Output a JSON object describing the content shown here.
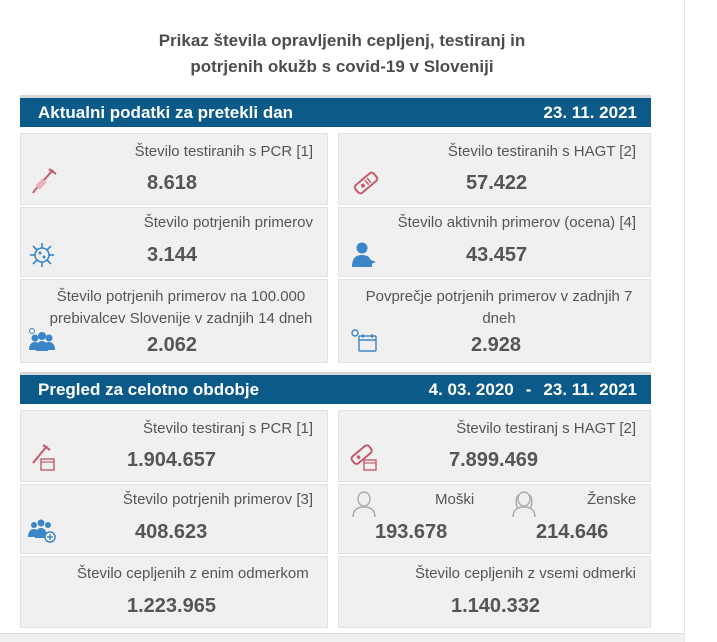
{
  "title": {
    "line1": "Prikaz števila opravljenih cepljenj, testiranj in",
    "line2": "potrjenih okužb s covid-19 v Sloveniji"
  },
  "daily": {
    "heading": "Aktualni podatki za pretekli dan",
    "date": "23. 11. 2021",
    "pcr_label": "Število testiranih s PCR [1]",
    "pcr_value": "8.618",
    "hagt_label": "Število testiranih s HAGT [2]",
    "hagt_value": "57.422",
    "confirmed_label": "Število potrjenih primerov",
    "confirmed_value": "3.144",
    "active_label": "Število aktivnih primerov (ocena) [4]",
    "active_value": "43.457",
    "per100k_label": "Število potrjenih primerov na 100.000 prebivalcev Slovenije v zadnjih 14 dneh",
    "per100k_value": "2.062",
    "avg7_label": "Povprečje potrjenih primerov v zadnjih 7 dneh",
    "avg7_value": "2.928"
  },
  "overall": {
    "heading": "Pregled za celotno obdobje",
    "date_from": "4. 03. 2020",
    "dash": "-",
    "date_to": "23. 11. 2021",
    "pcr_label": "Število testiranj s PCR [1]",
    "pcr_value": "1.904.657",
    "hagt_label": "Število testiranj s HAGT [2]",
    "hagt_value": "7.899.469",
    "confirmed_label": "Število potrjenih primerov [3]",
    "confirmed_value": "408.623",
    "male_label": "Moški",
    "male_value": "193.678",
    "female_label": "Ženske",
    "female_value": "214.646",
    "vacc_one_label": "Število cepljenih z enim odmerkom",
    "vacc_one_value": "1.223.965",
    "vacc_all_label": "Število cepljenih z vsemi odmerki",
    "vacc_all_value": "1.140.332"
  },
  "colors": {
    "band": "#0c5a8a",
    "icon_red": "#c65a6b",
    "icon_blue": "#3a86c8",
    "card_bg": "#f0f0f0"
  },
  "icons": [
    "test-tube-icon",
    "rapid-test-icon",
    "virus-icon",
    "person-icon",
    "people-group-icon",
    "calendar-virus-icon",
    "test-tube-calendar-icon",
    "rapid-test-calendar-icon",
    "people-plus-icon",
    "man-outline-icon",
    "woman-outline-icon"
  ]
}
